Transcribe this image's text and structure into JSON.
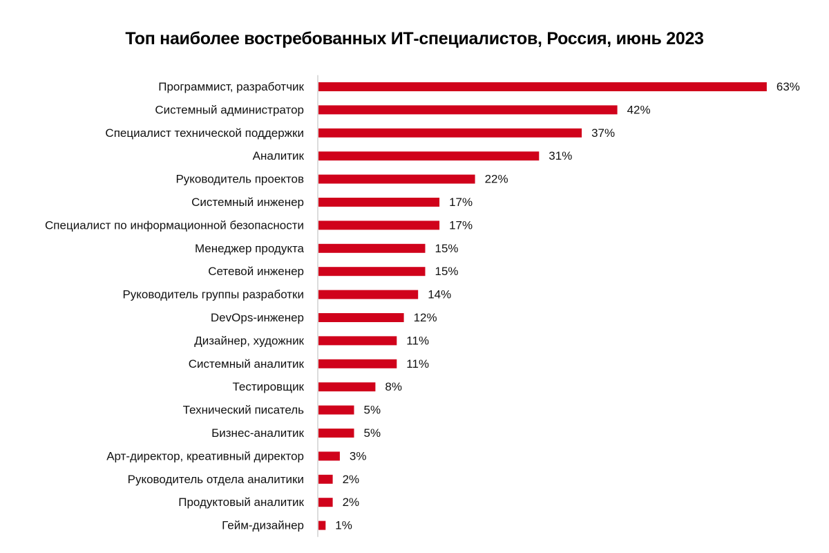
{
  "chart_data": {
    "type": "bar",
    "orientation": "horizontal",
    "title": "Топ наиболее востребованных ИТ-специалистов, Россия, июнь 2023",
    "xlabel": "",
    "ylabel": "",
    "grid": false,
    "legend": "none",
    "value_unit": "%",
    "bar_color": "#d0021b",
    "categories": [
      "Программист, разработчик",
      "Системный администратор",
      "Специалист технической поддержки",
      "Аналитик",
      "Руководитель проектов",
      "Системный инженер",
      "Специалист по информационной безопасности",
      "Менеджер продукта",
      "Сетевой инженер",
      "Руководитель группы разработки",
      "DevOps-инженер",
      "Дизайнер, художник",
      "Системный аналитик",
      "Тестировщик",
      "Технический писатель",
      "Бизнес-аналитик",
      "Арт-директор, креативный директор",
      "Руководитель отдела аналитики",
      "Продуктовый аналитик",
      "Гейм-дизайнер"
    ],
    "values": [
      63,
      42,
      37,
      31,
      22,
      17,
      17,
      15,
      15,
      14,
      12,
      11,
      11,
      8,
      5,
      5,
      3,
      2,
      2,
      1
    ],
    "value_labels": [
      "63%",
      "42%",
      "37%",
      "31%",
      "22%",
      "17%",
      "17%",
      "15%",
      "15%",
      "14%",
      "12%",
      "11%",
      "11%",
      "8%",
      "5%",
      "5%",
      "3%",
      "2%",
      "2%",
      "1%"
    ]
  }
}
